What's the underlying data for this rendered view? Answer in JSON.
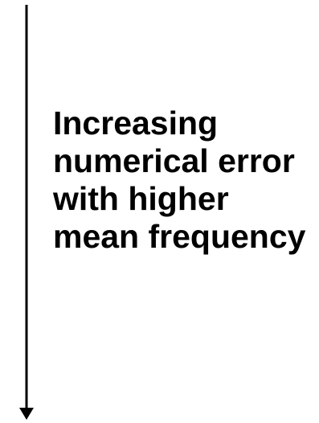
{
  "annotation": {
    "lines": [
      "Increasing",
      "numerical error",
      "with higher",
      "mean frequency"
    ]
  },
  "colors": {
    "arrow": "#000000",
    "text": "#000000",
    "background": "#ffffff"
  },
  "arrow": {
    "direction": "down"
  }
}
